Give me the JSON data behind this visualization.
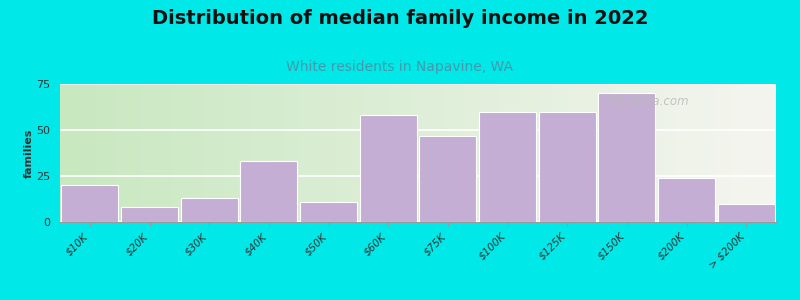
{
  "title": "Distribution of median family income in 2022",
  "subtitle": "White residents in Napavine, WA",
  "ylabel": "families",
  "categories": [
    "$10K",
    "$20K",
    "$30K",
    "$40K",
    "$50K",
    "$60K",
    "$75K",
    "$100K",
    "$125K",
    "$150K",
    "$200K",
    "> $200K"
  ],
  "values": [
    20,
    8,
    13,
    33,
    11,
    58,
    47,
    60,
    60,
    70,
    24,
    10
  ],
  "bar_color": "#c4aed4",
  "bar_edge_color": "#ffffff",
  "background_outer": "#00e8e8",
  "ylim": [
    0,
    75
  ],
  "yticks": [
    0,
    25,
    50,
    75
  ],
  "title_fontsize": 14,
  "subtitle_fontsize": 10,
  "subtitle_color": "#4499aa",
  "ylabel_fontsize": 8,
  "watermark": "  City-Data.com",
  "green_split": 9.5,
  "n_cats": 12
}
